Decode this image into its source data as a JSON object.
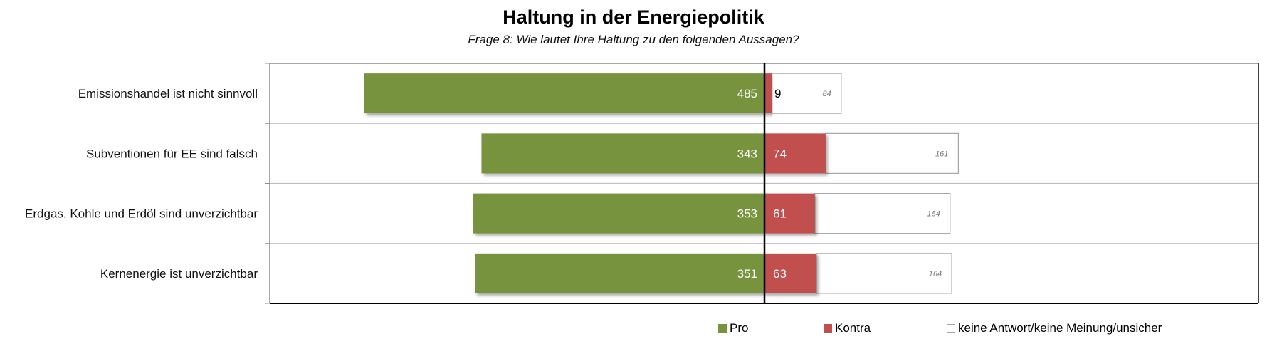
{
  "title": "Haltung in der Energiepolitik",
  "subtitle": "Frage 8: Wie lautet Ihre Haltung zu den folgenden Aussagen?",
  "colors": {
    "pro": "#77933c",
    "kontra": "#c0504d",
    "none_fill": "#ffffff",
    "none_border": "#a6a6a6"
  },
  "chart_data": {
    "type": "bar",
    "orientation": "horizontal",
    "stacked": "diverging",
    "title": "Haltung in der Energiepolitik",
    "subtitle": "Frage 8: Wie lautet Ihre Haltung zu den folgenden Aussagen?",
    "categories": [
      "Emissionshandel ist nicht sinnvoll",
      "Subventionen für EE sind falsch",
      "Erdgas, Kohle und Erdöl sind unverzichtbar",
      "Kernenergie ist unverzichtbar"
    ],
    "series": [
      {
        "name": "Pro",
        "direction": "left",
        "values": [
          485,
          343,
          353,
          351
        ]
      },
      {
        "name": "Kontra",
        "direction": "right",
        "values": [
          9,
          74,
          61,
          63
        ]
      },
      {
        "name": "keine Antwort/keine Meinung/unsicher",
        "direction": "right",
        "values": [
          84,
          161,
          164,
          164
        ]
      }
    ],
    "legend": {
      "position": "bottom-right",
      "entries": [
        "Pro",
        "Kontra",
        "keine Antwort/keine Meinung/unsicher"
      ]
    },
    "grid": true,
    "axis_tick_labels_visible": false
  }
}
